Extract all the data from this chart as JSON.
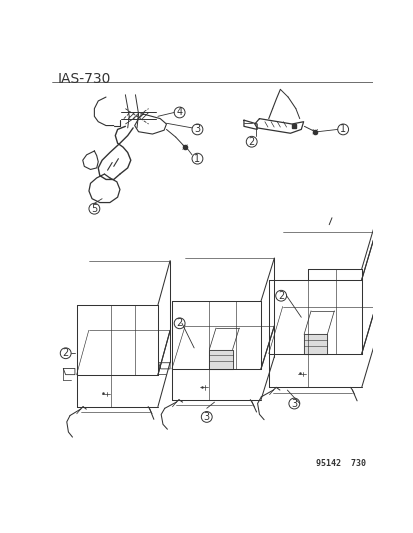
{
  "title": "IAS-730",
  "catalog_number": "95142  730",
  "bg_color": "#ffffff",
  "title_fontsize": 10,
  "line_color": "#333333",
  "label_fontsize": 7,
  "gray_color": "#aaaaaa"
}
